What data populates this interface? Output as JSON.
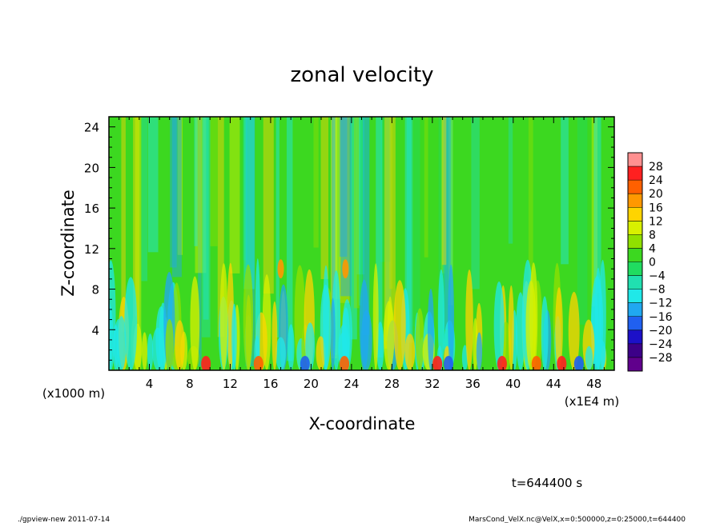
{
  "chart_data": {
    "type": "heatmap",
    "title": "zonal velocity",
    "xlabel": "X-coordinate",
    "ylabel": "Z-coordinate",
    "x_scale_note": "(x1E4 m)",
    "y_scale_note": "(x1000 m)",
    "x_range": [
      0,
      50
    ],
    "y_range": [
      0,
      25
    ],
    "x_ticks": [
      4,
      8,
      12,
      16,
      20,
      24,
      28,
      32,
      36,
      40,
      44,
      48
    ],
    "y_ticks": [
      4,
      8,
      12,
      16,
      20,
      24
    ],
    "colorbar": {
      "levels": [
        28,
        24,
        20,
        16,
        12,
        8,
        4,
        0,
        -4,
        -8,
        -12,
        -16,
        -20,
        -24,
        -28
      ],
      "colors": [
        "#ff9090",
        "#ff2020",
        "#ff6000",
        "#ff9800",
        "#ffd400",
        "#d8f000",
        "#90e000",
        "#3cd820",
        "#20dc60",
        "#20e0b0",
        "#20e8e8",
        "#20a8f0",
        "#2060f0",
        "#1c10c8",
        "#3c0088",
        "#60008c"
      ]
    },
    "annotation_time": "t=644400 s",
    "footer_left": "./gpview-new  2011-07-14",
    "footer_right": "MarsCond_VelX.nc@VelX,x=0:500000,z=0:25000,t=644400"
  }
}
